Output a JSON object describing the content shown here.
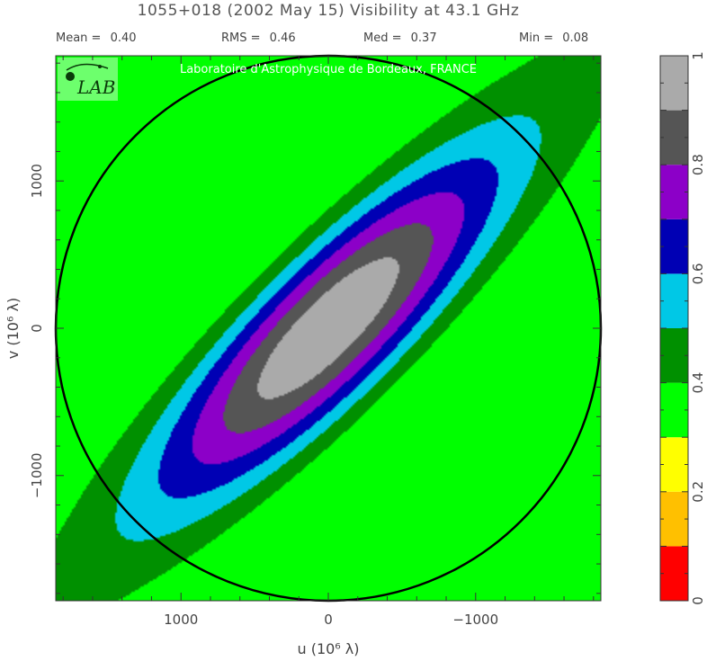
{
  "chart_data": {
    "type": "heatmap",
    "title": "1055+018  (2002 May 15)   Visibility at 43.1 GHz",
    "stats": [
      {
        "label": "Mean =",
        "value": "0.40"
      },
      {
        "label": "RMS =",
        "value": "0.46"
      },
      {
        "label": "Med =",
        "value": "0.37"
      },
      {
        "label": "Min =",
        "value": "0.08"
      }
    ],
    "xlabel": "u  (10⁶ λ)",
    "ylabel": "v  (10⁶ λ)",
    "xlim": [
      1850,
      -1850
    ],
    "ylim": [
      -1850,
      1850
    ],
    "x_ticks": [
      1000,
      0,
      -1000
    ],
    "x_tick_labels": [
      "1000",
      "0",
      "−1000"
    ],
    "y_ticks": [
      -1000,
      0,
      1000
    ],
    "y_tick_labels": [
      "−1000",
      "0",
      "1000"
    ],
    "circle_radius": 1850,
    "colorbar": {
      "range": [
        0,
        1
      ],
      "tick_values": [
        0,
        0.2,
        0.4,
        0.6,
        0.8,
        1
      ],
      "tick_labels": [
        "0",
        "0.2",
        "0.4",
        "0.6",
        "0.8",
        "1"
      ],
      "levels": [
        0,
        0.1,
        0.2,
        0.3,
        0.4,
        0.5,
        0.6,
        0.7,
        0.8,
        0.9,
        1.0
      ],
      "colors": [
        "#ff0000",
        "#ffc000",
        "#ffff00",
        "#00ff00",
        "#009000",
        "#00c8e6",
        "#0000b4",
        "#8c00c8",
        "#555555",
        "#aaaaaa"
      ]
    },
    "watermark": "Laboratoire d'Astrophysique de Bordeaux, FRANCE",
    "logo_text": "LAB"
  }
}
